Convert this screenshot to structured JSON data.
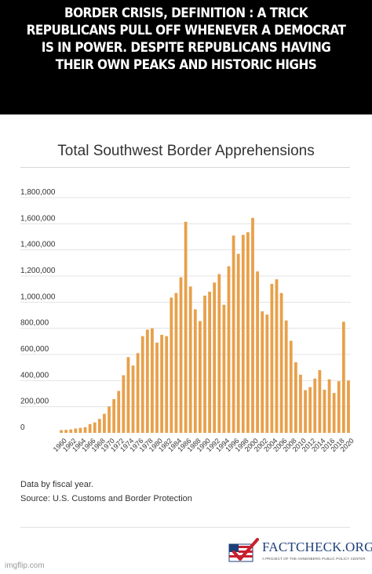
{
  "meme": {
    "caption": "BORDER CRISIS, DEFINITION : A TRICK REPUBLICANS PULL OFF WHENEVER A DEMOCRAT IS IN POWER. DESPITE REPUBLICANS HAVING THEIR OWN PEAKS AND HISTORIC HIGHS"
  },
  "chart_data": {
    "type": "bar",
    "title": "Total Southwest Border Apprehensions",
    "xlabel": "",
    "ylabel": "",
    "ylim": [
      0,
      1800000
    ],
    "yticks": [
      0,
      200000,
      400000,
      600000,
      800000,
      1000000,
      1200000,
      1400000,
      1600000,
      1800000
    ],
    "ytick_labels": [
      "0",
      "200,000",
      "400,000",
      "600,000",
      "800,000",
      "1,000,000",
      "1,200,000",
      "1,400,000",
      "1,600,000",
      "1,800,000"
    ],
    "grid": true,
    "legend": "none",
    "bar_color": "#e8a04a",
    "xtick_labels": [
      "1960",
      "1962",
      "1964",
      "1966",
      "1968",
      "1970",
      "1972",
      "1974",
      "1976",
      "1978",
      "1980",
      "1982",
      "1984",
      "1986",
      "1988",
      "1990",
      "1992",
      "1994",
      "1996",
      "1998",
      "2000",
      "2002",
      "2004",
      "2006",
      "2008",
      "2010",
      "2012",
      "2014",
      "2016",
      "2018",
      "2020"
    ],
    "categories": [
      1960,
      1961,
      1962,
      1963,
      1964,
      1965,
      1966,
      1967,
      1968,
      1969,
      1970,
      1971,
      1972,
      1973,
      1974,
      1975,
      1976,
      1977,
      1978,
      1979,
      1980,
      1981,
      1982,
      1983,
      1984,
      1985,
      1986,
      1987,
      1988,
      1989,
      1990,
      1991,
      1992,
      1993,
      1994,
      1995,
      1996,
      1997,
      1998,
      1999,
      2000,
      2001,
      2002,
      2003,
      2004,
      2005,
      2006,
      2007,
      2008,
      2009,
      2010,
      2011,
      2012,
      2013,
      2014,
      2015,
      2016,
      2017,
      2018,
      2019,
      2020
    ],
    "values": [
      21000,
      23000,
      26000,
      33000,
      38000,
      43000,
      67000,
      80000,
      107000,
      146000,
      202000,
      258000,
      321000,
      441000,
      580000,
      515000,
      610000,
      740000,
      790000,
      800000,
      690000,
      750000,
      740000,
      1035000,
      1070000,
      1190000,
      1615000,
      1120000,
      945000,
      855000,
      1050000,
      1080000,
      1150000,
      1215000,
      980000,
      1275000,
      1510000,
      1370000,
      1515000,
      1535000,
      1645000,
      1235000,
      930000,
      905000,
      1140000,
      1175000,
      1070000,
      860000,
      705000,
      540000,
      445000,
      327000,
      350000,
      415000,
      480000,
      330000,
      410000,
      305000,
      395000,
      850000,
      400000
    ]
  },
  "notes": {
    "line1": "Data by fiscal year.",
    "line2": "Source: U.S. Customs and Border Protection"
  },
  "logo": {
    "name": "FACTCHECK.ORG",
    "tagline": "A PROJECT OF THE ANNENBERG PUBLIC POLICY CENTER",
    "colors": {
      "red": "#c8202f",
      "blue": "#1d3f7a"
    }
  },
  "watermark": "imgflip.com"
}
